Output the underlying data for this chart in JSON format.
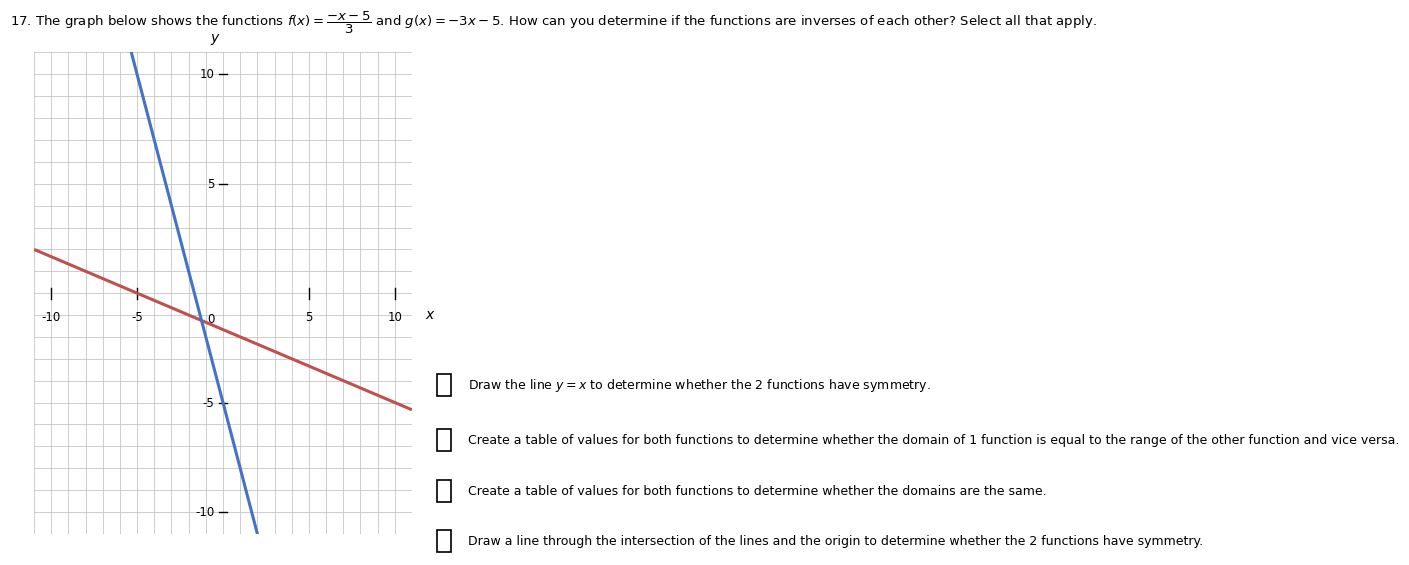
{
  "xlim": [
    -11,
    11
  ],
  "ylim": [
    -11,
    11
  ],
  "xtick_vals": [
    -10,
    -5,
    5,
    10
  ],
  "ytick_vals": [
    -10,
    -5,
    5,
    10
  ],
  "grid_color": "#bbbbbb",
  "bg_color": "#ffffff",
  "f_color": "#c0504d",
  "g_color": "#4472c4",
  "y_label": "y",
  "x_label": "x",
  "checkbox_options": [
    "Draw the line $y = x$ to determine whether the 2 functions have symmetry.",
    "Create a table of values for both functions to determine whether the domain of 1 function is equal to the range of the other function and vice versa.",
    "Create a table of values for both functions to determine whether the domains are the same.",
    "Draw a line through the intersection of the lines and the origin to determine whether the 2 functions have symmetry."
  ]
}
